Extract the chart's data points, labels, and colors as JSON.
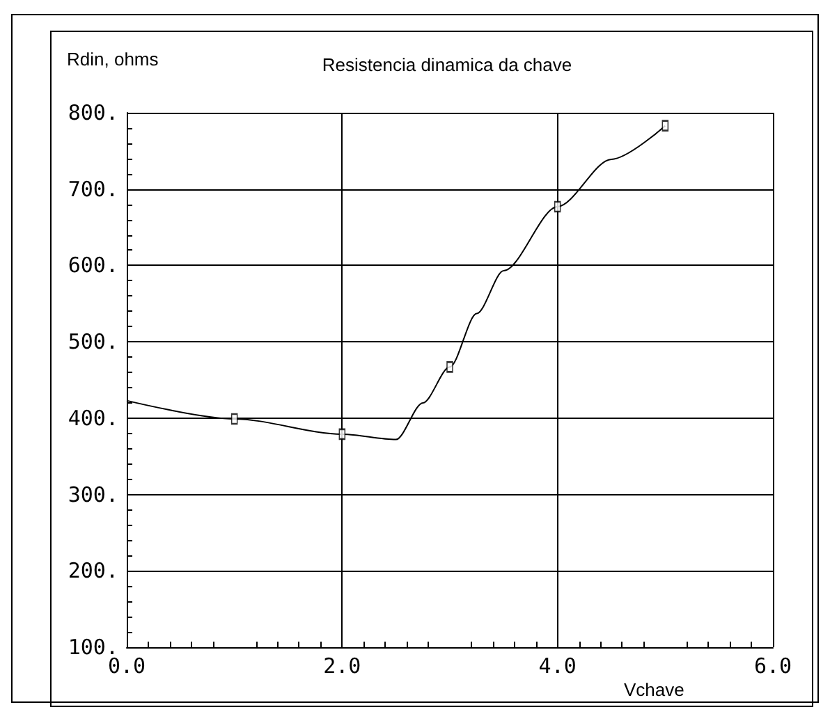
{
  "chart_data": {
    "type": "line",
    "title": "Resistencia dinamica da chave",
    "xlabel": "Vchave",
    "ylabel": "Rdin, ohms",
    "series": [
      {
        "color": "#000000",
        "marker": "none",
        "x": [
          0,
          1,
          2,
          2.5,
          2.75,
          3,
          3.25,
          3.5,
          4,
          4.5,
          5
        ],
        "values": [
          423,
          399,
          379,
          372,
          420,
          467,
          537,
          593,
          677,
          739,
          783
        ]
      },
      {
        "type": "scatter",
        "color": "#000000",
        "marker": "square",
        "x": [
          1,
          2,
          3,
          4,
          5
        ],
        "values": [
          399,
          379,
          467,
          677,
          783
        ]
      }
    ],
    "xlim": [
      0,
      6
    ],
    "xticks": [
      {
        "value": 0,
        "label": "0.0"
      },
      {
        "value": 2,
        "label": "2.0"
      },
      {
        "value": 4,
        "label": "4.0"
      },
      {
        "value": 6,
        "label": "6.0"
      }
    ],
    "ylim": [
      100,
      800
    ],
    "yticks": [
      {
        "value": 100,
        "label": "100."
      },
      {
        "value": 200,
        "label": "200."
      },
      {
        "value": 300,
        "label": "300."
      },
      {
        "value": 400,
        "label": "400."
      },
      {
        "value": 500,
        "label": "500."
      },
      {
        "value": 600,
        "label": "600."
      },
      {
        "value": 700,
        "label": "700."
      },
      {
        "value": 800,
        "label": "800."
      }
    ],
    "grid": true
  }
}
